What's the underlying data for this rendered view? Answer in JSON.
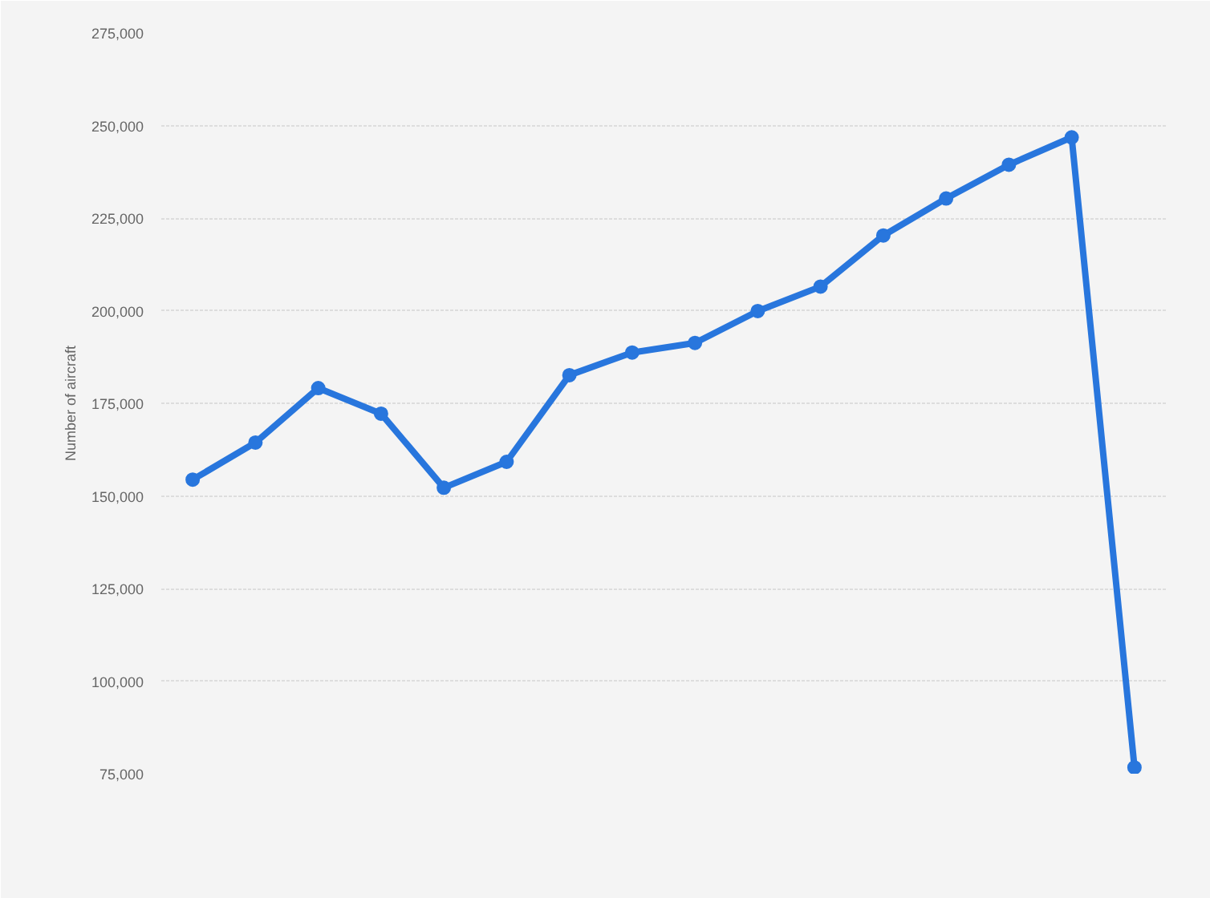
{
  "chart_data": {
    "type": "line",
    "ylabel": "Number of aircraft",
    "categories": [
      null,
      null,
      null,
      null,
      null,
      null,
      null,
      null,
      null,
      null,
      null,
      null,
      null,
      null,
      null,
      null
    ],
    "series": [
      {
        "color": "#2876dd",
        "values": [
          154400,
          164400,
          179100,
          172200,
          152200,
          159200,
          182600,
          188700,
          191300,
          199900,
          206500,
          220300,
          230300,
          239400,
          246800,
          76700
        ]
      }
    ],
    "ylim": [
      75000,
      275000
    ],
    "yticks": [
      {
        "value": 75000,
        "label": "75,000"
      },
      {
        "value": 100000,
        "label": "100,000"
      },
      {
        "value": 125000,
        "label": "125,000"
      },
      {
        "value": 150000,
        "label": "150,000"
      },
      {
        "value": 175000,
        "label": "175,000"
      },
      {
        "value": 200000,
        "label": "200,000"
      },
      {
        "value": 225000,
        "label": "225,000"
      },
      {
        "value": 250000,
        "label": "250,000"
      },
      {
        "value": 275000,
        "label": "275,000"
      }
    ],
    "grid": "y",
    "marker": "circle",
    "line_style": "solid"
  }
}
